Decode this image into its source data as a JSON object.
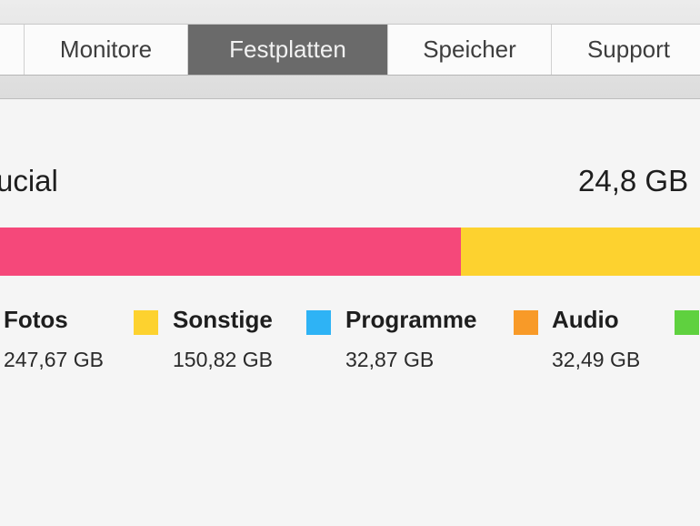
{
  "tabs": [
    {
      "label": ""
    },
    {
      "label": "Monitore"
    },
    {
      "label": "Festplatten",
      "active": true
    },
    {
      "label": "Speicher"
    },
    {
      "label": "Support"
    }
  ],
  "disk": {
    "name": "ucial",
    "free": "24,8 GB"
  },
  "usage_bar": {
    "segments": [
      {
        "category": "Fotos",
        "color": "#f5487a"
      },
      {
        "category": "Sonstige",
        "color": "#fdd22f"
      }
    ]
  },
  "legend": [
    {
      "label": "Fotos",
      "value": "247,67 GB",
      "color": "#f5487a"
    },
    {
      "label": "Sonstige",
      "value": "150,82 GB",
      "color": "#fdd22f"
    },
    {
      "label": "Programme",
      "value": "32,87 GB",
      "color": "#2eb3f5"
    },
    {
      "label": "Audio",
      "value": "32,49 GB",
      "color": "#f89a28"
    },
    {
      "label": "",
      "value": "",
      "color": "#5fd13f"
    }
  ]
}
